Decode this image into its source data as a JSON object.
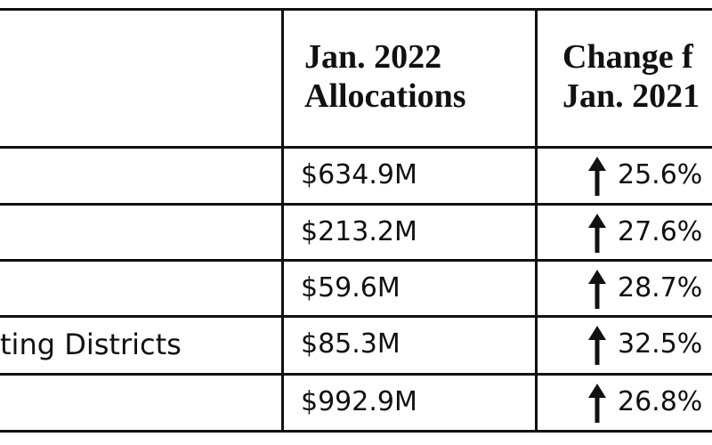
{
  "table": {
    "header": [
      {
        "line1": "Jan. 2022",
        "line2": "Allocations"
      },
      {
        "line1": "Change f",
        "line2": "Jan. 2021"
      }
    ],
    "rows": [
      {
        "value": "$634.9M",
        "change": "25.6%"
      },
      {
        "value": "$213.2M",
        "change": "27.6%"
      },
      {
        "value": "$59.6M",
        "change": "28.7%"
      },
      {
        "label": "ting Districts",
        "value": "$85.3M",
        "change": "32.5%"
      },
      {
        "value": "$992.9M",
        "change": "26.8%"
      }
    ]
  }
}
